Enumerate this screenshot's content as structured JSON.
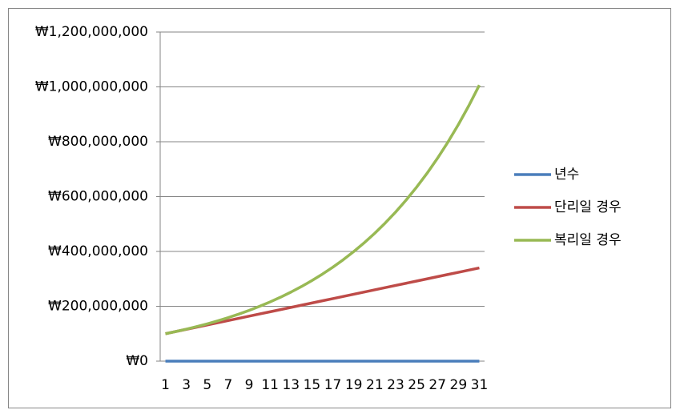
{
  "chart_data": {
    "type": "line",
    "categories": [
      1,
      null,
      3,
      null,
      5,
      null,
      7,
      null,
      9,
      null,
      11,
      null,
      13,
      null,
      15,
      null,
      17,
      null,
      19,
      null,
      21,
      null,
      23,
      null,
      25,
      null,
      27,
      null,
      29,
      null,
      31
    ],
    "series": [
      {
        "name": "년수",
        "color": "#4a7ebb",
        "values": [
          1,
          2,
          3,
          4,
          5,
          6,
          7,
          8,
          9,
          10,
          11,
          12,
          13,
          14,
          15,
          16,
          17,
          18,
          19,
          20,
          21,
          22,
          23,
          24,
          25,
          26,
          27,
          28,
          29,
          30,
          31
        ]
      },
      {
        "name": "단리일 경우",
        "color": "#be4b48",
        "values": [
          100000000,
          108000000,
          116000000,
          124000000,
          132000000,
          140000000,
          148000000,
          156000000,
          164000000,
          172000000,
          180000000,
          188000000,
          196000000,
          204000000,
          212000000,
          220000000,
          228000000,
          236000000,
          244000000,
          252000000,
          260000000,
          268000000,
          276000000,
          284000000,
          292000000,
          300000000,
          308000000,
          316000000,
          324000000,
          332000000,
          340000000
        ]
      },
      {
        "name": "복리일 경우",
        "color": "#98b954",
        "values": [
          100000000,
          108000000,
          116640000,
          125970000,
          136050000,
          146930000,
          158690000,
          171380000,
          185090000,
          199900000,
          215890000,
          233160000,
          251820000,
          271960000,
          293720000,
          317220000,
          342590000,
          370000000,
          399600000,
          431570000,
          466100000,
          503380000,
          543650000,
          587150000,
          634120000,
          684850000,
          739630000,
          798800000,
          862710000,
          931730000,
          1006270000
        ]
      }
    ],
    "ylim": [
      0,
      1200000000
    ],
    "yticks": [
      {
        "value": 0,
        "label": "₩0"
      },
      {
        "value": 200000000,
        "label": "₩200,000,000"
      },
      {
        "value": 400000000,
        "label": "₩400,000,000"
      },
      {
        "value": 600000000,
        "label": "₩600,000,000"
      },
      {
        "value": 800000000,
        "label": "₩800,000,000"
      },
      {
        "value": 1000000000,
        "label": "₩1,000,000,000"
      },
      {
        "value": 1200000000,
        "label": "₩1,200,000,000"
      }
    ],
    "grid": true,
    "legend": "right"
  }
}
